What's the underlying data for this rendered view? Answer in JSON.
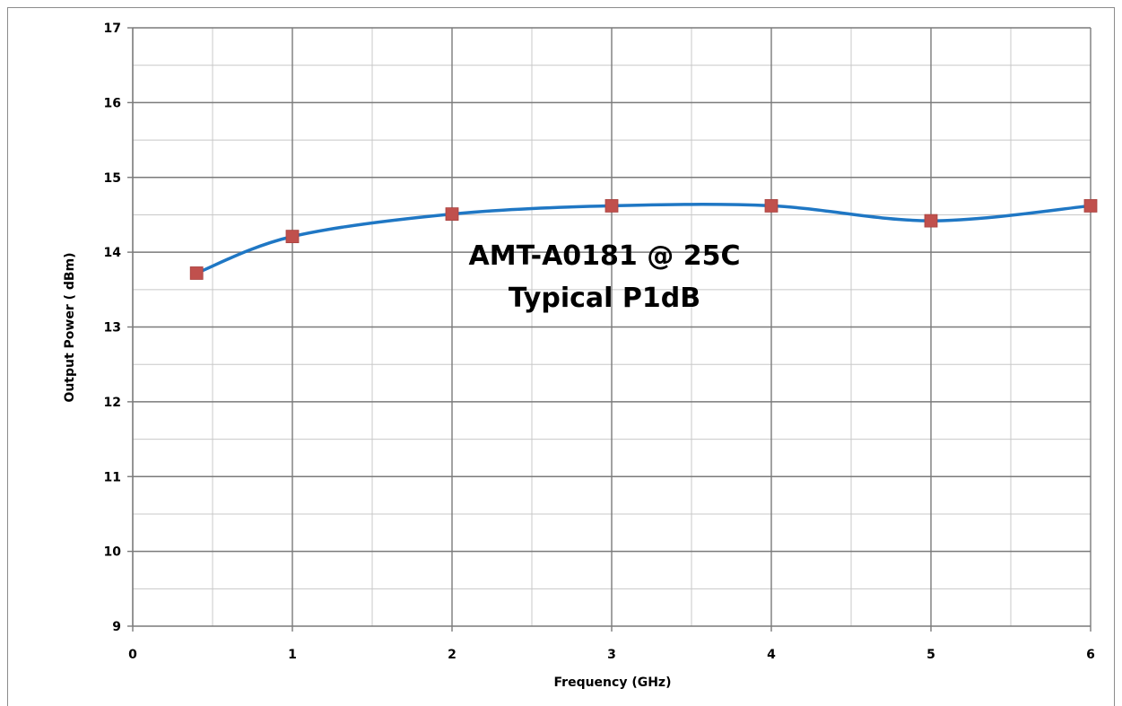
{
  "chart_data": {
    "type": "line",
    "title": "",
    "annotations": [
      "AMT-A0181 @ 25C",
      "Typical P1dB"
    ],
    "xlabel": "Frequency (GHz)",
    "ylabel": "Output Power ( dBm)",
    "xlim": [
      0,
      6
    ],
    "ylim": [
      9,
      17
    ],
    "x_ticks": [
      "0",
      "1",
      "2",
      "3",
      "4",
      "5",
      "6"
    ],
    "y_ticks": [
      "9",
      "10",
      "11",
      "12",
      "13",
      "14",
      "15",
      "16",
      "17"
    ],
    "x_minor_step": 0.5,
    "y_minor_step": 0.5,
    "grid": true,
    "legend": "none",
    "line_color": "#1F77C4",
    "marker_color": "#C0504D",
    "series": [
      {
        "x": [
          0.4,
          1,
          2,
          3,
          4,
          5,
          6
        ],
        "y": [
          13.72,
          14.21,
          14.51,
          14.62,
          14.62,
          14.42,
          14.62
        ]
      }
    ]
  }
}
